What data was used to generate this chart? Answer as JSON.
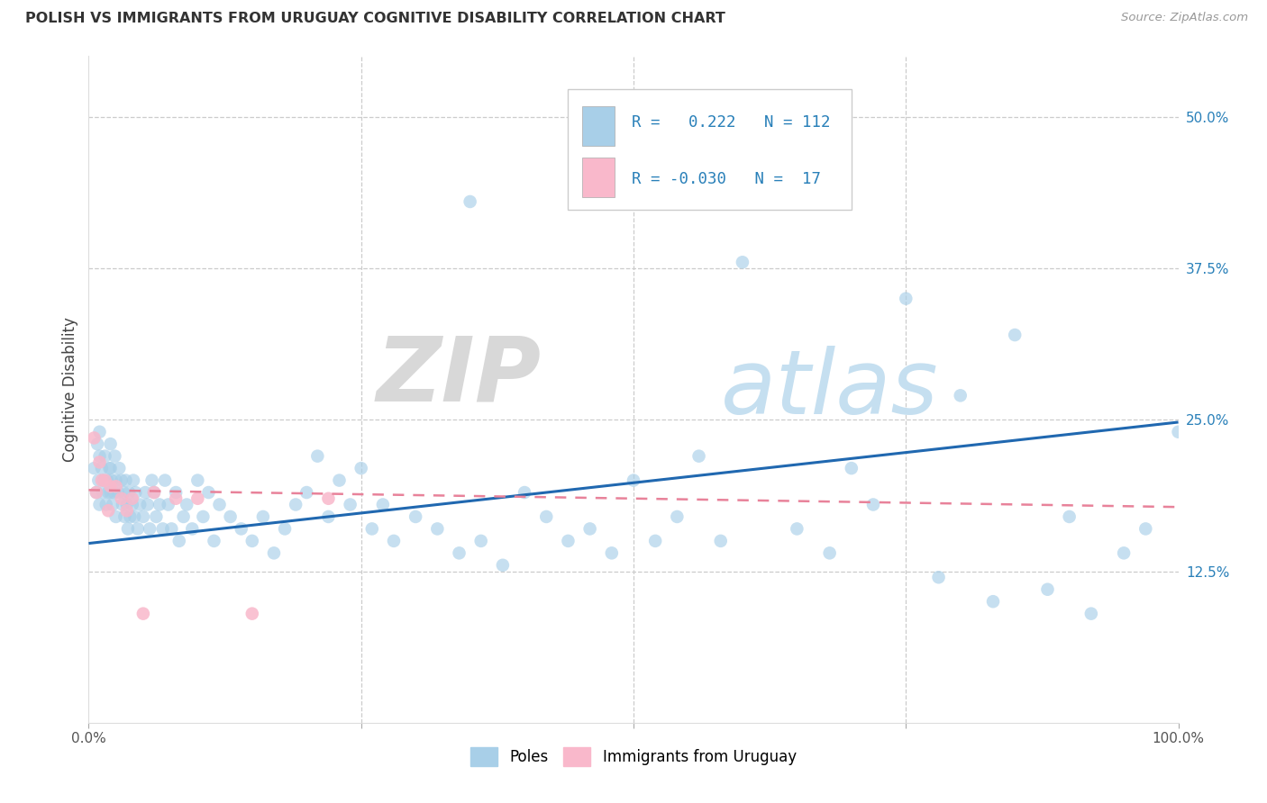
{
  "title": "POLISH VS IMMIGRANTS FROM URUGUAY COGNITIVE DISABILITY CORRELATION CHART",
  "source": "Source: ZipAtlas.com",
  "ylabel_label": "Cognitive Disability",
  "right_ytick_vals": [
    0.5,
    0.375,
    0.25,
    0.125
  ],
  "right_ytick_labels": [
    "50.0%",
    "37.5%",
    "25.0%",
    "12.5%"
  ],
  "xmin": 0.0,
  "xmax": 1.0,
  "ymin": 0.0,
  "ymax": 0.55,
  "blue_color": "#a8cfe8",
  "pink_color": "#f9b8cb",
  "blue_line_color": "#2068b0",
  "pink_line_color": "#e8829a",
  "blue_line_y0": 0.148,
  "blue_line_y1": 0.248,
  "pink_line_y0": 0.192,
  "pink_line_y1": 0.178,
  "watermark_zip": "ZIP",
  "watermark_atlas": "atlas",
  "legend_R1": " 0.222",
  "legend_N1": "112",
  "legend_R2": "-0.030",
  "legend_N2": " 17",
  "poles_x": [
    0.005,
    0.007,
    0.008,
    0.009,
    0.01,
    0.01,
    0.01,
    0.012,
    0.013,
    0.014,
    0.015,
    0.016,
    0.017,
    0.018,
    0.019,
    0.02,
    0.02,
    0.02,
    0.021,
    0.022,
    0.023,
    0.024,
    0.025,
    0.025,
    0.027,
    0.028,
    0.03,
    0.031,
    0.032,
    0.033,
    0.034,
    0.035,
    0.036,
    0.037,
    0.038,
    0.04,
    0.041,
    0.042,
    0.043,
    0.045,
    0.047,
    0.05,
    0.052,
    0.054,
    0.056,
    0.058,
    0.06,
    0.062,
    0.065,
    0.068,
    0.07,
    0.073,
    0.076,
    0.08,
    0.083,
    0.087,
    0.09,
    0.095,
    0.1,
    0.105,
    0.11,
    0.115,
    0.12,
    0.13,
    0.14,
    0.15,
    0.16,
    0.17,
    0.18,
    0.19,
    0.2,
    0.21,
    0.22,
    0.23,
    0.24,
    0.25,
    0.26,
    0.27,
    0.28,
    0.3,
    0.32,
    0.34,
    0.35,
    0.36,
    0.38,
    0.4,
    0.42,
    0.44,
    0.46,
    0.48,
    0.5,
    0.52,
    0.54,
    0.56,
    0.58,
    0.6,
    0.62,
    0.65,
    0.68,
    0.7,
    0.72,
    0.75,
    0.78,
    0.8,
    0.83,
    0.85,
    0.88,
    0.9,
    0.92,
    0.95,
    0.97,
    1.0
  ],
  "poles_y": [
    0.21,
    0.19,
    0.23,
    0.2,
    0.24,
    0.22,
    0.18,
    0.21,
    0.19,
    0.2,
    0.22,
    0.18,
    0.2,
    0.19,
    0.21,
    0.19,
    0.21,
    0.23,
    0.2,
    0.18,
    0.19,
    0.22,
    0.17,
    0.2,
    0.19,
    0.21,
    0.2,
    0.18,
    0.19,
    0.17,
    0.2,
    0.18,
    0.16,
    0.19,
    0.17,
    0.18,
    0.2,
    0.17,
    0.19,
    0.16,
    0.18,
    0.17,
    0.19,
    0.18,
    0.16,
    0.2,
    0.19,
    0.17,
    0.18,
    0.16,
    0.2,
    0.18,
    0.16,
    0.19,
    0.15,
    0.17,
    0.18,
    0.16,
    0.2,
    0.17,
    0.19,
    0.15,
    0.18,
    0.17,
    0.16,
    0.15,
    0.17,
    0.14,
    0.16,
    0.18,
    0.19,
    0.22,
    0.17,
    0.2,
    0.18,
    0.21,
    0.16,
    0.18,
    0.15,
    0.17,
    0.16,
    0.14,
    0.43,
    0.15,
    0.13,
    0.19,
    0.17,
    0.15,
    0.16,
    0.14,
    0.2,
    0.15,
    0.17,
    0.22,
    0.15,
    0.38,
    0.44,
    0.16,
    0.14,
    0.21,
    0.18,
    0.35,
    0.12,
    0.27,
    0.1,
    0.32,
    0.11,
    0.17,
    0.09,
    0.14,
    0.16,
    0.24
  ],
  "uru_x": [
    0.005,
    0.007,
    0.01,
    0.012,
    0.015,
    0.018,
    0.02,
    0.025,
    0.03,
    0.035,
    0.04,
    0.05,
    0.06,
    0.08,
    0.1,
    0.15,
    0.22
  ],
  "uru_y": [
    0.235,
    0.19,
    0.215,
    0.2,
    0.2,
    0.175,
    0.195,
    0.195,
    0.185,
    0.175,
    0.185,
    0.09,
    0.19,
    0.185,
    0.185,
    0.09,
    0.185
  ]
}
